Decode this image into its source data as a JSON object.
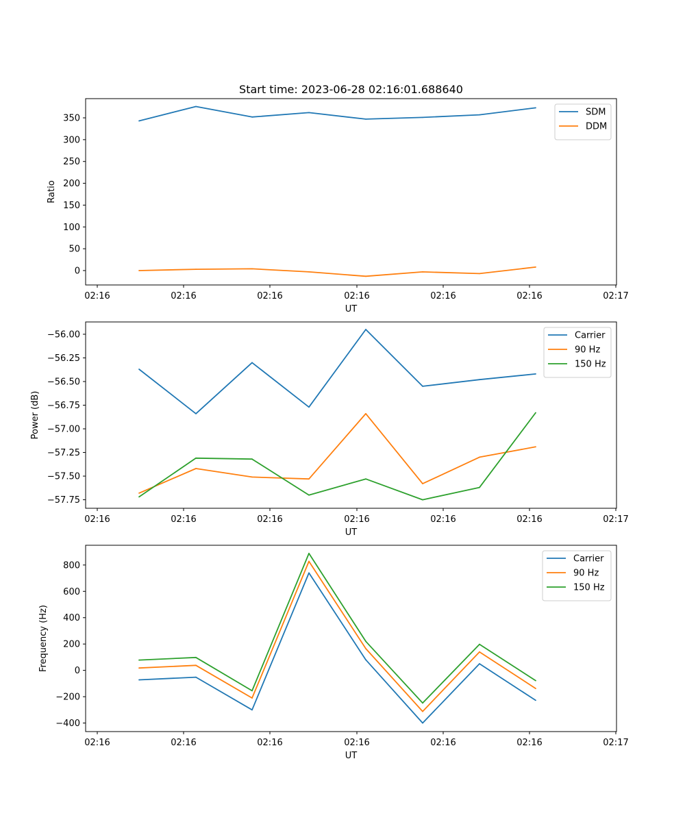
{
  "title": "Start time: 2023-06-28 02:16:01.688640",
  "chart_data": [
    {
      "type": "line",
      "xlabel": "UT",
      "ylabel": "Ratio",
      "x_tick_labels": [
        "02:16",
        "02:16",
        "02:16",
        "02:16",
        "02:16",
        "02:16",
        "02:17"
      ],
      "y_ticks": [
        0,
        50,
        100,
        150,
        200,
        250,
        300,
        350
      ],
      "y_tick_labels": [
        "0",
        "50",
        "100",
        "150",
        "200",
        "250",
        "300",
        "350"
      ],
      "ylim": [
        -33,
        394
      ],
      "legend_position": "top-right",
      "series": [
        {
          "name": "SDM",
          "color": "#1f77b4",
          "values": [
            343,
            376,
            352,
            362,
            347,
            351,
            357,
            373
          ]
        },
        {
          "name": "DDM",
          "color": "#ff7f0e",
          "values": [
            0,
            3,
            4,
            -3,
            -13,
            -3,
            -7,
            8
          ]
        }
      ]
    },
    {
      "type": "line",
      "xlabel": "UT",
      "ylabel": "Power (dB)",
      "x_tick_labels": [
        "02:16",
        "02:16",
        "02:16",
        "02:16",
        "02:16",
        "02:16",
        "02:17"
      ],
      "y_ticks": [
        -57.75,
        -57.5,
        -57.25,
        -57.0,
        -56.75,
        -56.5,
        -56.25,
        -56.0
      ],
      "y_tick_labels": [
        "−57.75",
        "−57.50",
        "−57.25",
        "−57.00",
        "−56.75",
        "−56.50",
        "−56.25",
        "−56.00"
      ],
      "ylim": [
        -57.84,
        -55.87
      ],
      "legend_position": "top-right",
      "series": [
        {
          "name": "Carrier",
          "color": "#1f77b4",
          "values": [
            -56.37,
            -56.84,
            -56.3,
            -56.77,
            -55.95,
            -56.55,
            -56.48,
            -56.42
          ]
        },
        {
          "name": "90 Hz",
          "color": "#ff7f0e",
          "values": [
            -57.68,
            -57.42,
            -57.51,
            -57.53,
            -56.84,
            -57.58,
            -57.3,
            -57.19
          ]
        },
        {
          "name": "150 Hz",
          "color": "#2ca02c",
          "values": [
            -57.72,
            -57.31,
            -57.32,
            -57.7,
            -57.53,
            -57.75,
            -57.62,
            -56.83
          ]
        }
      ]
    },
    {
      "type": "line",
      "xlabel": "UT",
      "ylabel": "Frequency (Hz)",
      "x_tick_labels": [
        "02:16",
        "02:16",
        "02:16",
        "02:16",
        "02:16",
        "02:16",
        "02:17"
      ],
      "y_ticks": [
        -400,
        -200,
        0,
        200,
        400,
        600,
        800
      ],
      "y_tick_labels": [
        "−400",
        "−200",
        "0",
        "200",
        "400",
        "600",
        "800"
      ],
      "ylim": [
        -465,
        950
      ],
      "legend_position": "top-right",
      "series": [
        {
          "name": "Carrier",
          "color": "#1f77b4",
          "values": [
            -72,
            -52,
            -300,
            740,
            80,
            -400,
            50,
            -228
          ]
        },
        {
          "name": "90 Hz",
          "color": "#ff7f0e",
          "values": [
            18,
            38,
            -210,
            828,
            165,
            -312,
            140,
            -138
          ]
        },
        {
          "name": "150 Hz",
          "color": "#2ca02c",
          "values": [
            78,
            98,
            -155,
            888,
            220,
            -248,
            198,
            -78
          ]
        }
      ]
    }
  ]
}
